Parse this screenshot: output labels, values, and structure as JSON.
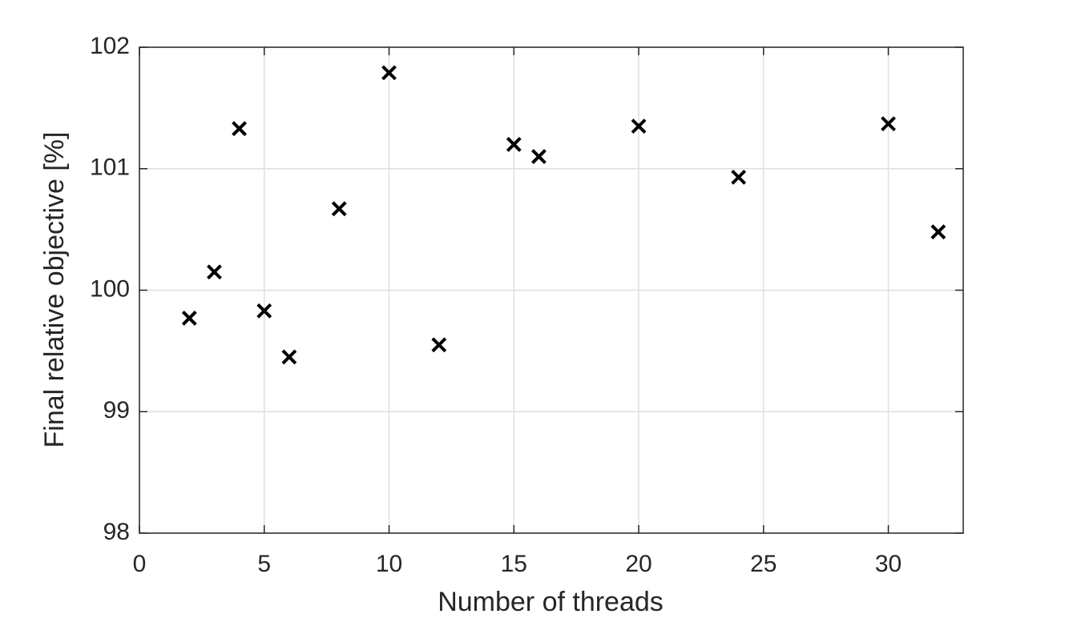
{
  "chart_data": {
    "type": "scatter",
    "xlabel": "Number of threads",
    "ylabel": "Final relative objective [%]",
    "x": [
      2,
      3,
      4,
      5,
      6,
      8,
      10,
      12,
      15,
      16,
      20,
      24,
      30,
      32
    ],
    "values": [
      99.77,
      100.15,
      101.33,
      99.83,
      99.45,
      100.67,
      101.79,
      99.55,
      101.2,
      101.1,
      101.35,
      100.93,
      101.37,
      100.48
    ],
    "color": "#000000",
    "marker": "x",
    "xlim": [
      0,
      33
    ],
    "xticks": [
      0,
      5,
      10,
      15,
      20,
      25,
      30
    ],
    "ylim": [
      98,
      102
    ],
    "yticks": [
      98,
      99,
      100,
      101,
      102
    ],
    "grid": true
  }
}
